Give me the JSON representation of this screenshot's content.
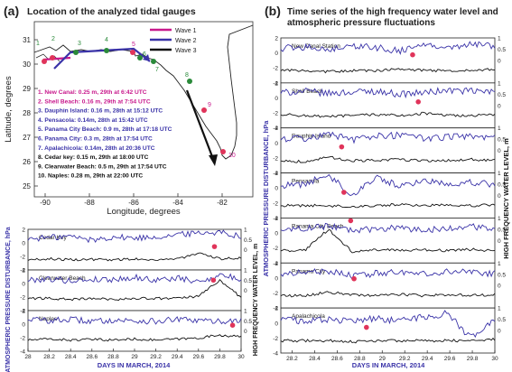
{
  "panel_a": {
    "letter": "(a)",
    "title": "Location of the analyzed tidal gauges",
    "legend": [
      {
        "label": "Wave 1",
        "color": "#c8198c"
      },
      {
        "label": "Wave 2",
        "color": "#3a33a8"
      },
      {
        "label": "Wave 3",
        "color": "#111111"
      }
    ],
    "gauges": [
      {
        "text": "1. New Canal: 0.25 m, 29th at 6:42 UTC",
        "color": "#c8198c"
      },
      {
        "text": "2. Shell Beach: 0.16 m, 29th at 7:54 UTC",
        "color": "#c8198c"
      },
      {
        "text": "3. Dauphin Island: 0.16 m, 28th at 15:12 UTC",
        "color": "#3a33a8"
      },
      {
        "text": "4. Pensacola: 0.14m, 28th at 15:42 UTC",
        "color": "#3a33a8"
      },
      {
        "text": "5. Panama City Beach: 0.9 m, 28th at 17:18 UTC",
        "color": "#3a33a8"
      },
      {
        "text": "6. Panama City:  0.3 m, 28th at 17:54 UTC",
        "color": "#3a33a8"
      },
      {
        "text": "7. Apalachicola: 0.14m, 28th at 20:36 UTC",
        "color": "#3a33a8"
      },
      {
        "text": "8. Cedar key: 0.15 m, 29th at 18:00 UTC",
        "color": "#111111"
      },
      {
        "text": "9. Clearwater Beach: 0.5 m, 29th at 17:54 UTC",
        "color": "#111111"
      },
      {
        "text": "10. Naples: 0.28 m, 29th at 22:00 UTC",
        "color": "#111111"
      }
    ],
    "marker_labels": [
      "1",
      "2",
      "3",
      "4",
      "5",
      "6",
      "7",
      "8",
      "9",
      "10"
    ],
    "map_xticks": [
      "-90",
      "-88",
      "-86",
      "-84",
      "-82"
    ],
    "map_yticks": [
      "31",
      "30",
      "29",
      "28",
      "27",
      "26",
      "25"
    ],
    "xlabel": "Longitude, degrees",
    "ylabel": "Latitude, degrees"
  },
  "panel_b": {
    "letter": "(b)",
    "title_line1": "Time series of the high frequency water level and",
    "title_line2": "atmospheric pressure fluctuations"
  },
  "axis_text": {
    "left_ylabel": "ATMOSPHERIC PRESSURE DISTURBANCE, hPa",
    "right_ylabel": "HIGH FREQUENCY WATER LEVEL, m",
    "xlabel": "DAYS IN MARCH, 2014"
  },
  "colors": {
    "pressure": "#3a33a8",
    "water": "#111111",
    "peak_marker": "#e0345a",
    "land": "#ffffff",
    "sea": "#ffffff"
  },
  "chart_data": [
    {
      "type": "line",
      "group": "left",
      "x": [
        28.0,
        28.2,
        28.4,
        28.6,
        28.8,
        29.0,
        29.2,
        29.4,
        29.6,
        29.8,
        30.0
      ],
      "xticklabels": [
        "28",
        "28.2",
        "28.4",
        "28.6",
        "28.8",
        "29",
        "29.2",
        "29.4",
        "29.6",
        "29.8",
        "30"
      ],
      "xlim": [
        28,
        30
      ],
      "ylim_left": [
        -4,
        2
      ],
      "ylim_right": [
        -1,
        1
      ],
      "left_ticks": [
        "2",
        "0",
        "-2",
        "-4"
      ],
      "right_ticks": [
        "1",
        "0.5",
        "0"
      ],
      "panels": [
        {
          "station": "Cedar Key",
          "pressure": [
            0.6,
            0.8,
            1.0,
            0.4,
            0.9,
            0.7,
            0.9,
            1.2,
            1.5,
            1.6,
            1.0
          ],
          "water": [
            -0.5,
            -0.45,
            -0.5,
            -0.48,
            -0.5,
            -0.45,
            -0.5,
            -0.45,
            -0.2,
            -0.45,
            -0.4
          ],
          "peak": [
            29.75,
            0.15
          ]
        },
        {
          "station": "Clearwater Beach",
          "pressure": [
            0.5,
            0.7,
            0.4,
            0.6,
            0.6,
            0.9,
            0.5,
            0.8,
            0.2,
            1.3,
            0.6
          ],
          "water": [
            -0.4,
            -0.4,
            -0.45,
            -0.4,
            -0.45,
            -0.4,
            -0.4,
            -0.4,
            -0.3,
            0.5,
            -0.35
          ],
          "peak": [
            29.74,
            0.5
          ]
        },
        {
          "station": "Naples",
          "pressure": [
            0.8,
            0.5,
            0.7,
            0.4,
            0.6,
            0.5,
            0.4,
            0.7,
            0.5,
            0.4,
            0.6
          ],
          "water": [
            -0.45,
            -0.4,
            -0.45,
            -0.42,
            -0.45,
            -0.4,
            -0.45,
            -0.4,
            -0.35,
            -0.2,
            -0.3
          ],
          "peak": [
            29.92,
            0.28
          ]
        }
      ]
    },
    {
      "type": "line",
      "group": "right",
      "x": [
        28.2,
        28.4,
        28.6,
        28.8,
        29.0,
        29.2,
        29.4,
        29.6,
        29.8,
        30.0
      ],
      "xticklabels": [
        "28.2",
        "28.4",
        "28.6",
        "28.8",
        "29",
        "29.2",
        "29.4",
        "29.6",
        "29.8",
        "30"
      ],
      "xlim": [
        28.1,
        30
      ],
      "ylim_left": [
        -4,
        2
      ],
      "ylim_right": [
        -1,
        1
      ],
      "left_ticks": [
        "2",
        "0",
        "-2",
        "-4"
      ],
      "right_ticks": [
        "1",
        "0.5",
        "0"
      ],
      "panels": [
        {
          "station": "New Canal Station",
          "pressure": [
            0.6,
            0.8,
            0.5,
            0.9,
            0.7,
            0.3,
            1.0,
            0.8,
            1.2,
            0.9
          ],
          "water": [
            -0.45,
            -0.45,
            -0.5,
            -0.45,
            -0.45,
            -0.4,
            -0.45,
            -0.45,
            -0.45,
            -0.4
          ],
          "peak": [
            29.27,
            0.25
          ]
        },
        {
          "station": "Shell Beach",
          "pressure": [
            0.7,
            0.9,
            0.6,
            0.8,
            0.9,
            0.5,
            0.7,
            1.0,
            0.9,
            0.8
          ],
          "water": [
            -0.4,
            -0.45,
            -0.5,
            -0.45,
            -0.4,
            -0.45,
            -0.35,
            -0.45,
            -0.45,
            -0.4
          ],
          "peak": [
            29.32,
            0.16
          ]
        },
        {
          "station": "Dauphin Island",
          "pressure": [
            0.5,
            0.6,
            1.2,
            0.4,
            0.9,
            1.0,
            0.6,
            0.8,
            0.9,
            0.7
          ],
          "water": [
            -0.45,
            -0.5,
            -0.3,
            -0.45,
            -0.45,
            -0.4,
            -0.45,
            -0.45,
            -0.4,
            -0.45
          ],
          "peak": [
            28.64,
            0.16
          ]
        },
        {
          "station": "Pensacola",
          "pressure": [
            0.3,
            0.5,
            1.8,
            -1.0,
            1.5,
            0.2,
            1.0,
            0.6,
            0.8,
            0.5
          ],
          "water": [
            -0.45,
            -0.45,
            -0.45,
            -0.5,
            -0.45,
            -0.4,
            -0.45,
            -0.4,
            -0.45,
            -0.4
          ],
          "peak": [
            28.66,
            0.14
          ]
        },
        {
          "station": "Panama City Beach",
          "pressure": [
            0.5,
            0.6,
            0.9,
            0.4,
            0.5,
            0.7,
            0.4,
            0.6,
            0.8,
            0.5
          ],
          "water": [
            -0.45,
            -0.45,
            0.5,
            -0.5,
            -0.4,
            -0.45,
            -0.4,
            -0.45,
            -0.4,
            -0.45
          ],
          "peak": [
            28.72,
            0.9
          ]
        },
        {
          "station": "Panama City",
          "pressure": [
            0.6,
            0.7,
            0.9,
            0.3,
            0.6,
            0.8,
            0.5,
            0.9,
            0.7,
            0.6
          ],
          "water": [
            -0.45,
            -0.45,
            -0.3,
            -0.4,
            -0.45,
            -0.4,
            -0.45,
            -0.4,
            -0.45,
            -0.4
          ],
          "peak": [
            28.75,
            0.3
          ]
        },
        {
          "station": "Apalachicola",
          "pressure": [
            0.4,
            0.3,
            0.5,
            0.2,
            0.6,
            0.3,
            0.8,
            1.3,
            -2.0,
            0.4
          ],
          "water": [
            -0.45,
            -0.45,
            -0.45,
            -0.5,
            -0.45,
            -0.45,
            -0.45,
            -0.45,
            -0.45,
            -0.4
          ],
          "peak": [
            28.86,
            0.14
          ]
        }
      ]
    }
  ]
}
